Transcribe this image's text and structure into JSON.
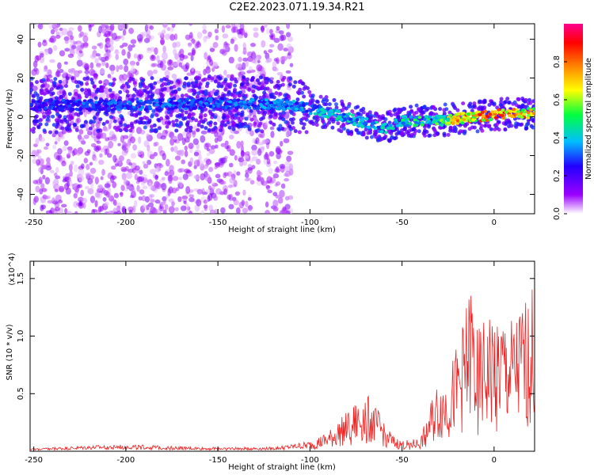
{
  "title": "C2E2.2023.071.19.34.R21",
  "chart_data": [
    {
      "type": "heatmap",
      "xlabel": "Height of straight line (km)",
      "ylabel": "Frequency (Hz)",
      "xlim": [
        -252,
        22
      ],
      "ylim": [
        -50,
        48
      ],
      "xticks": [
        -250,
        -200,
        -150,
        -100,
        -50,
        0
      ],
      "yticks": [
        -40,
        -20,
        0,
        20,
        40
      ],
      "colorbar": {
        "label": "Normalized spectral amplitude",
        "range": [
          0,
          1
        ],
        "ticks": [
          "0.0",
          "0.2",
          "0.4",
          "0.6",
          "0.8"
        ],
        "colormap": [
          "#ffffff",
          "#9b00ff",
          "#2200ff",
          "#00bfff",
          "#00ff40",
          "#ffff00",
          "#ff8000",
          "#ff0000",
          "#ff0090"
        ]
      },
      "ridge": [
        {
          "x": -250,
          "freq": 6,
          "amp": 0.3
        },
        {
          "x": -200,
          "freq": 6,
          "amp": 0.35
        },
        {
          "x": -150,
          "freq": 7,
          "amp": 0.35
        },
        {
          "x": -110,
          "freq": 6,
          "amp": 0.4
        },
        {
          "x": -90,
          "freq": 2,
          "amp": 0.45
        },
        {
          "x": -60,
          "freq": -6,
          "amp": 0.45
        },
        {
          "x": -50,
          "freq": -2,
          "amp": 0.5
        },
        {
          "x": -30,
          "freq": -2,
          "amp": 0.55
        },
        {
          "x": -20,
          "freq": -1,
          "amp": 0.8
        },
        {
          "x": 0,
          "freq": 1,
          "amp": 0.9
        },
        {
          "x": 20,
          "freq": 2,
          "amp": 0.8
        }
      ]
    },
    {
      "type": "line",
      "xlabel": "Height of straight line (km)",
      "ylabel": "SNR (10 * v/v)",
      "yscale_note": "(x10^4)",
      "xlim": [
        -252,
        22
      ],
      "ylim": [
        0,
        1.65
      ],
      "xticks": [
        -250,
        -200,
        -150,
        -100,
        -50,
        0
      ],
      "yticks": [
        0.5,
        1.0,
        1.5
      ],
      "line_color": "#ee2222",
      "series": [
        {
          "x": [
            -250,
            -220,
            -200,
            -180,
            -160,
            -140,
            -120,
            -110,
            -100,
            -90,
            -80,
            -70,
            -65,
            -60,
            -55,
            -50,
            -40,
            -35,
            -30,
            -25,
            -20,
            -15,
            -12,
            -10,
            -5,
            0,
            5,
            10,
            15,
            20,
            22
          ],
          "values": [
            0.02,
            0.04,
            0.05,
            0.04,
            0.03,
            0.03,
            0.03,
            0.05,
            0.08,
            0.15,
            0.3,
            0.45,
            0.35,
            0.25,
            0.12,
            0.08,
            0.1,
            0.35,
            0.55,
            0.6,
            0.8,
            1.1,
            1.35,
            0.9,
            1.0,
            1.1,
            1.05,
            1.0,
            1.12,
            1.2,
            1.3
          ]
        }
      ]
    }
  ]
}
